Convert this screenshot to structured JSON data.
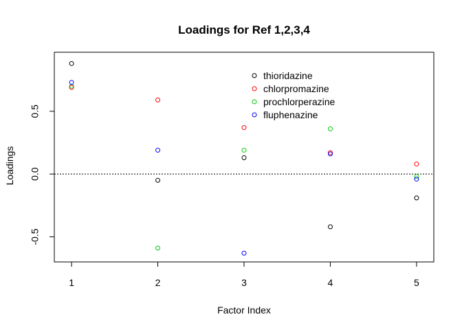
{
  "chart_data": {
    "type": "scatter",
    "title": "Loadings for Ref 1,2,3,4",
    "xlabel": "Factor Index",
    "ylabel": "Loadings",
    "xlim": [
      0.8,
      5.2
    ],
    "ylim": [
      -0.7,
      0.97
    ],
    "x_ticks": [
      1,
      2,
      3,
      4,
      5
    ],
    "y_ticks": [
      -0.5,
      0.0,
      0.5
    ],
    "x_tick_labels": [
      "1",
      "2",
      "3",
      "4",
      "5"
    ],
    "y_tick_labels": [
      "-0.5",
      "0.0",
      "0.5"
    ],
    "hline": 0,
    "grid": false,
    "legend_position": "top-right",
    "series": [
      {
        "name": "thioridazine",
        "color": "#000000",
        "x": [
          1,
          2,
          3,
          4,
          5
        ],
        "y": [
          0.88,
          -0.05,
          0.13,
          -0.42,
          -0.19
        ]
      },
      {
        "name": "chlorpromazine",
        "color": "#ff0000",
        "x": [
          1,
          2,
          3,
          4,
          5
        ],
        "y": [
          0.69,
          0.59,
          0.37,
          0.17,
          0.08
        ]
      },
      {
        "name": "prochlorperazine",
        "color": "#00cd00",
        "x": [
          1,
          2,
          3,
          4,
          5
        ],
        "y": [
          0.7,
          -0.59,
          0.19,
          0.36,
          -0.02
        ]
      },
      {
        "name": "fluphenazine",
        "color": "#0000ff",
        "x": [
          1,
          2,
          3,
          4,
          5
        ],
        "y": [
          0.73,
          0.19,
          -0.63,
          0.16,
          -0.04
        ]
      }
    ]
  }
}
